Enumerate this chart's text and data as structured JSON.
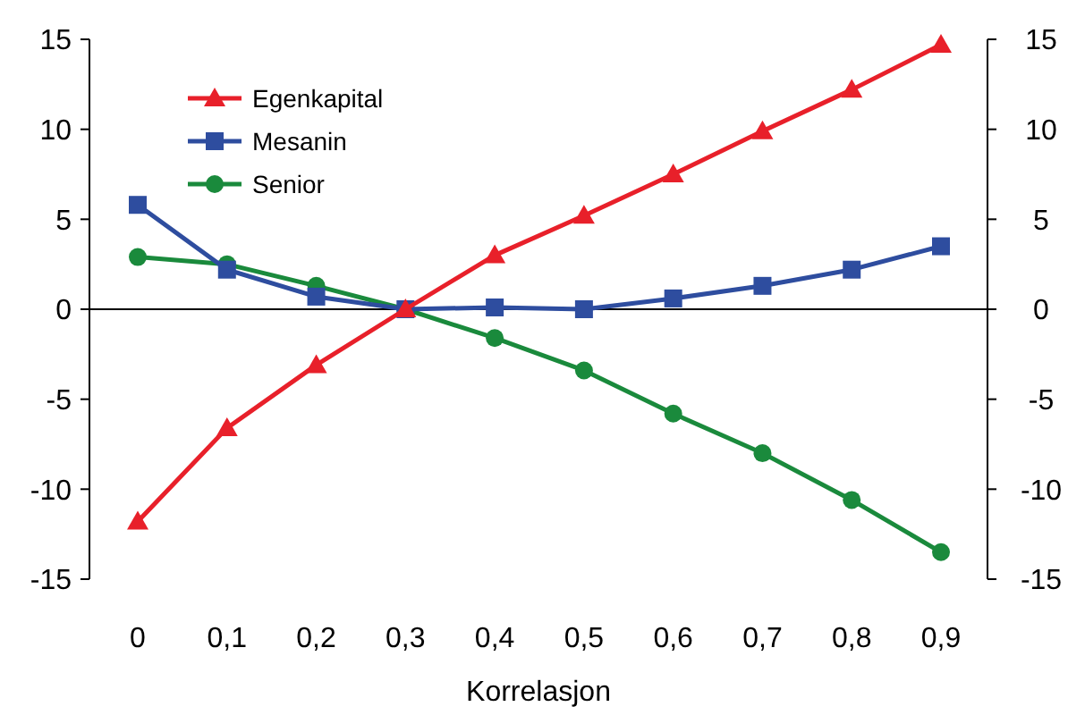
{
  "chart_data": {
    "type": "line",
    "xlabel": "Korrelasjon",
    "categories": [
      "0",
      "0,1",
      "0,2",
      "0,3",
      "0,4",
      "0,5",
      "0,6",
      "0,7",
      "0,8",
      "0,9"
    ],
    "series": [
      {
        "name": "Egenkapital",
        "color": "#e8202a",
        "marker": "triangle",
        "values": [
          -11.8,
          -6.6,
          -3.1,
          0,
          3.0,
          5.2,
          7.5,
          9.9,
          12.2,
          14.7
        ]
      },
      {
        "name": "Mesanin",
        "color": "#2e4d9f",
        "marker": "square",
        "values": [
          5.8,
          2.2,
          0.7,
          0,
          0.1,
          0,
          0.6,
          1.3,
          2.2,
          3.5
        ]
      },
      {
        "name": "Senior",
        "color": "#1a8a3c",
        "marker": "circle",
        "values": [
          2.9,
          2.5,
          1.3,
          0,
          -1.6,
          -3.4,
          -5.8,
          -8.0,
          -10.6,
          -13.5
        ]
      }
    ],
    "ylim": [
      -15,
      15
    ],
    "yticks": [
      -15,
      -10,
      -5,
      0,
      5,
      10,
      15
    ],
    "y2lim": [
      -15,
      15
    ],
    "y2ticks": [
      -15,
      -10,
      -5,
      0,
      5,
      10,
      15
    ],
    "ref_lines": [
      {
        "axis": "y",
        "value": 0,
        "color": "#000000"
      }
    ],
    "grid": false,
    "legend": "top left",
    "line_style": "solid"
  }
}
